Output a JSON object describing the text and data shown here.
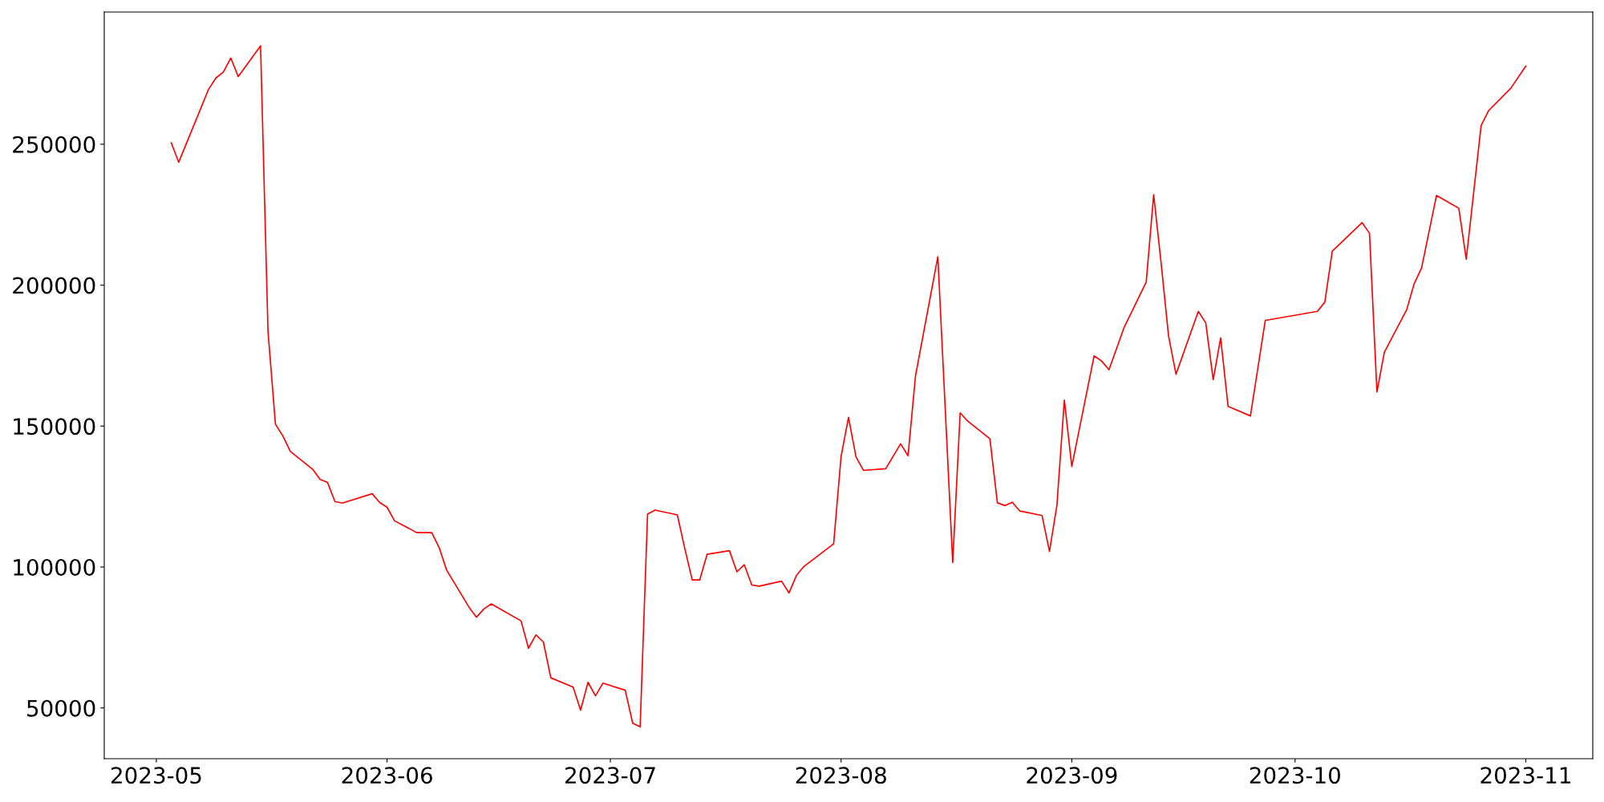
{
  "chart_data": {
    "type": "line",
    "x": [
      "2023-05-03",
      "2023-05-04",
      "2023-05-08",
      "2023-05-09",
      "2023-05-10",
      "2023-05-11",
      "2023-05-12",
      "2023-05-15",
      "2023-05-16",
      "2023-05-17",
      "2023-05-18",
      "2023-05-19",
      "2023-05-22",
      "2023-05-23",
      "2023-05-24",
      "2023-05-25",
      "2023-05-26",
      "2023-05-30",
      "2023-05-31",
      "2023-06-01",
      "2023-06-02",
      "2023-06-05",
      "2023-06-07",
      "2023-06-08",
      "2023-06-09",
      "2023-06-12",
      "2023-06-13",
      "2023-06-14",
      "2023-06-15",
      "2023-06-19",
      "2023-06-20",
      "2023-06-21",
      "2023-06-22",
      "2023-06-23",
      "2023-06-26",
      "2023-06-27",
      "2023-06-28",
      "2023-06-29",
      "2023-06-30",
      "2023-07-03",
      "2023-07-04",
      "2023-07-05",
      "2023-07-06",
      "2023-07-07",
      "2023-07-10",
      "2023-07-11",
      "2023-07-12",
      "2023-07-13",
      "2023-07-14",
      "2023-07-17",
      "2023-07-18",
      "2023-07-19",
      "2023-07-20",
      "2023-07-21",
      "2023-07-24",
      "2023-07-25",
      "2023-07-26",
      "2023-07-27",
      "2023-07-31",
      "2023-08-01",
      "2023-08-02",
      "2023-08-03",
      "2023-08-04",
      "2023-08-07",
      "2023-08-09",
      "2023-08-10",
      "2023-08-11",
      "2023-08-14",
      "2023-08-16",
      "2023-08-17",
      "2023-08-18",
      "2023-08-21",
      "2023-08-22",
      "2023-08-23",
      "2023-08-24",
      "2023-08-25",
      "2023-08-28",
      "2023-08-29",
      "2023-08-30",
      "2023-08-31",
      "2023-09-01",
      "2023-09-04",
      "2023-09-05",
      "2023-09-06",
      "2023-09-08",
      "2023-09-11",
      "2023-09-12",
      "2023-09-13",
      "2023-09-14",
      "2023-09-15",
      "2023-09-18",
      "2023-09-19",
      "2023-09-20",
      "2023-09-21",
      "2023-09-22",
      "2023-09-25",
      "2023-09-27",
      "2023-10-04",
      "2023-10-05",
      "2023-10-06",
      "2023-10-10",
      "2023-10-11",
      "2023-10-12",
      "2023-10-13",
      "2023-10-16",
      "2023-10-17",
      "2023-10-18",
      "2023-10-20",
      "2023-10-23",
      "2023-10-24",
      "2023-10-26",
      "2023-10-27",
      "2023-10-30",
      "2023-11-01"
    ],
    "series": [
      {
        "color": "#ff0000",
        "values": [
          250500,
          243600,
          269400,
          273500,
          275600,
          280600,
          274000,
          284900,
          183600,
          150700,
          146500,
          141000,
          134700,
          131100,
          130000,
          123200,
          122700,
          126000,
          122900,
          121200,
          116400,
          112200,
          112200,
          106900,
          98900,
          85800,
          82200,
          85100,
          86900,
          80900,
          71200,
          75900,
          73400,
          60700,
          57400,
          49200,
          59100,
          54300,
          58800,
          56300,
          44600,
          43300,
          118800,
          120200,
          118500,
          106600,
          95400,
          95400,
          104500,
          105800,
          98300,
          100800,
          93600,
          93200,
          95000,
          90800,
          97000,
          100200,
          108200,
          139200,
          153100,
          139100,
          134300,
          134900,
          143700,
          139500,
          167800,
          210100,
          101600,
          154700,
          151800,
          145500,
          122800,
          121800,
          123000,
          119900,
          118300,
          105500,
          121900,
          159200,
          135700,
          174900,
          173100,
          170000,
          184800,
          201100,
          232100,
          207900,
          182000,
          168400,
          190700,
          186600,
          166500,
          181300,
          157000,
          153600,
          187500,
          190700,
          194000,
          212100,
          222200,
          218400,
          162100,
          176200,
          191300,
          200500,
          206100,
          231800,
          227300,
          209200,
          256700,
          261900,
          269900,
          277700
        ]
      }
    ],
    "xlim": [
      "2023-04-24",
      "2023-11-10"
    ],
    "xticks": [
      {
        "value": "2023-05-01",
        "label": "2023-05"
      },
      {
        "value": "2023-06-01",
        "label": "2023-06"
      },
      {
        "value": "2023-07-01",
        "label": "2023-07"
      },
      {
        "value": "2023-08-01",
        "label": "2023-08"
      },
      {
        "value": "2023-09-01",
        "label": "2023-09"
      },
      {
        "value": "2023-10-01",
        "label": "2023-10"
      },
      {
        "value": "2023-11-01",
        "label": "2023-11"
      }
    ],
    "ylim": [
      32000,
      296900
    ],
    "yticks": [
      50000,
      100000,
      150000,
      200000,
      250000
    ],
    "line_style": "solid",
    "marker": "none"
  }
}
